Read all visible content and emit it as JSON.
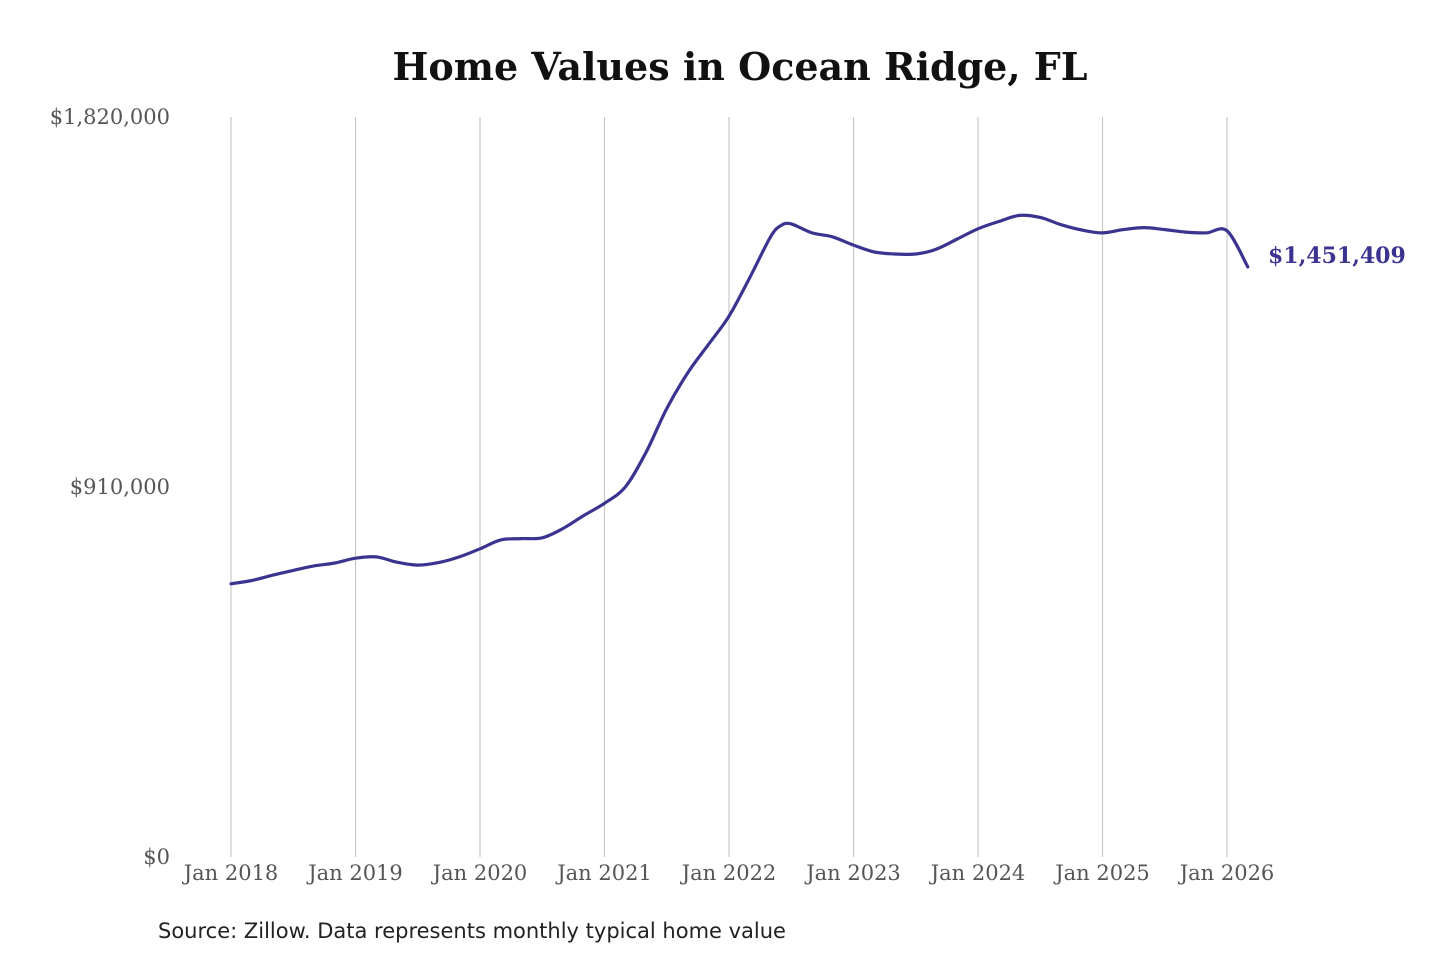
{
  "chart_data": {
    "type": "line",
    "title": "Home Values in Ocean Ridge, FL",
    "xlabel": "",
    "ylabel": "",
    "ylim": [
      0,
      1820000
    ],
    "yticks": [
      0,
      910000,
      1820000
    ],
    "ytick_labels": [
      "$0",
      "$910,000",
      "$1,820,000"
    ],
    "xticks": [
      "2018-01",
      "2019-01",
      "2020-01",
      "2021-01",
      "2022-01",
      "2023-01",
      "2024-01",
      "2025-01",
      "2026-01"
    ],
    "xtick_labels": [
      "Jan 2018",
      "Jan 2019",
      "Jan 2020",
      "Jan 2021",
      "Jan 2022",
      "Jan 2023",
      "Jan 2024",
      "Jan 2025",
      "Jan 2026"
    ],
    "grid": "vertical",
    "line_color": "#3a3490",
    "series": [
      {
        "x": [
          "2018-01",
          "2018-03",
          "2018-05",
          "2018-07",
          "2018-09",
          "2018-11",
          "2019-01",
          "2019-03",
          "2019-05",
          "2019-07",
          "2019-09",
          "2019-11",
          "2020-01",
          "2020-03",
          "2020-05",
          "2020-07",
          "2020-09",
          "2020-11",
          "2021-01",
          "2021-03",
          "2021-05",
          "2021-07",
          "2021-09",
          "2021-11",
          "2022-01",
          "2022-03",
          "2022-05",
          "2022-06",
          "2022-07",
          "2022-09",
          "2022-11",
          "2023-01",
          "2023-03",
          "2023-05",
          "2023-07",
          "2023-09",
          "2023-11",
          "2024-01",
          "2024-03",
          "2024-05",
          "2024-07",
          "2024-09",
          "2024-11",
          "2025-01",
          "2025-03",
          "2025-05",
          "2025-07",
          "2025-09",
          "2025-11",
          "2026-01",
          "2026-03"
        ],
        "values": [
          672000,
          680000,
          693000,
          705000,
          716000,
          723000,
          735000,
          738000,
          725000,
          718000,
          724000,
          738000,
          758000,
          780000,
          783000,
          785000,
          808000,
          840000,
          870000,
          910000,
          995000,
          1103000,
          1190000,
          1260000,
          1330000,
          1425000,
          1525000,
          1553000,
          1557000,
          1535000,
          1525000,
          1505000,
          1488000,
          1483000,
          1483000,
          1495000,
          1520000,
          1545000,
          1563000,
          1578000,
          1573000,
          1555000,
          1542000,
          1535000,
          1543000,
          1548000,
          1543000,
          1537000,
          1535000,
          1540000,
          1451409
        ]
      }
    ],
    "end_label": "$1,451,409",
    "source_note": "Source: Zillow. Data represents monthly typical home value"
  }
}
